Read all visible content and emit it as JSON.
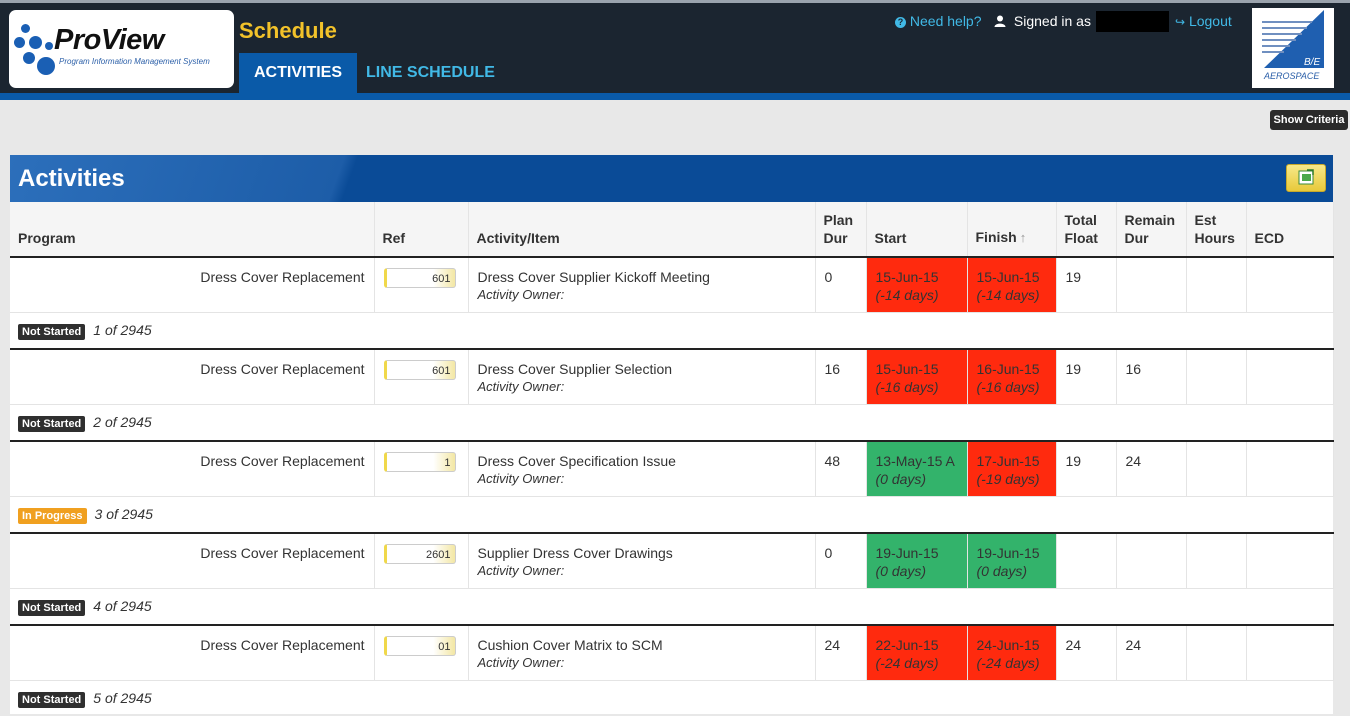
{
  "header": {
    "logo_name": "ProView",
    "logo_tagline": "Program Information Management System",
    "app_title": "Schedule",
    "tabs": [
      {
        "label": "ACTIVITIES",
        "active": true
      },
      {
        "label": "LINE SCHEDULE",
        "active": false
      }
    ],
    "help_label": "Need help?",
    "signed_in_label": "Signed in as",
    "logout_label": "Logout",
    "brand_logo_text": "AEROSPACE"
  },
  "toolbar": {
    "show_criteria_label": "Show Criteria"
  },
  "panel": {
    "title": "Activities",
    "columns": {
      "program": "Program",
      "ref": "Ref",
      "activity": "Activity/Item",
      "plan_dur_1": "Plan",
      "plan_dur_2": "Dur",
      "start": "Start",
      "finish": "Finish",
      "total_float_1": "Total",
      "total_float_2": "Float",
      "remain_dur_1": "Remain",
      "remain_dur_2": "Dur",
      "est_hours_1": "Est",
      "est_hours_2": "Hours",
      "ecd": "ECD"
    }
  },
  "colors": {
    "late": "#ff2a0e",
    "on_time": "#33b36b",
    "accent": "#0a5aa8",
    "title_yellow": "#f2c22a"
  },
  "rows": [
    {
      "program": "Dress Cover Replacement",
      "ref": "601",
      "activity": "Dress Cover Supplier Kickoff Meeting",
      "owner_label": "Activity Owner:",
      "plan_dur": "0",
      "start": "15-Jun-15",
      "start_sub": "(-14 days)",
      "start_status": "red",
      "finish": "15-Jun-15",
      "finish_sub": "(-14 days)",
      "finish_status": "red",
      "total_float": "19",
      "remain_dur": "",
      "est_hours": "",
      "ecd": "",
      "status": "Not Started",
      "position": "1 of 2945"
    },
    {
      "program": "Dress Cover Replacement",
      "ref": "601",
      "activity": "Dress Cover Supplier Selection",
      "owner_label": "Activity Owner:",
      "plan_dur": "16",
      "start": "15-Jun-15",
      "start_sub": "(-16 days)",
      "start_status": "red",
      "finish": "16-Jun-15",
      "finish_sub": "(-16 days)",
      "finish_status": "red",
      "total_float": "19",
      "remain_dur": "16",
      "est_hours": "",
      "ecd": "",
      "status": "Not Started",
      "position": "2 of 2945"
    },
    {
      "program": "Dress Cover Replacement",
      "ref": "1",
      "activity": "Dress Cover Specification Issue",
      "owner_label": "Activity Owner:",
      "plan_dur": "48",
      "start": "13-May-15 A",
      "start_sub": "(0 days)",
      "start_status": "green",
      "finish": "17-Jun-15",
      "finish_sub": "(-19 days)",
      "finish_status": "red",
      "total_float": "19",
      "remain_dur": "24",
      "est_hours": "",
      "ecd": "",
      "status": "In Progress",
      "position": "3 of 2945"
    },
    {
      "program": "Dress Cover Replacement",
      "ref": "2601",
      "activity": "Supplier Dress Cover Drawings",
      "owner_label": "Activity Owner:",
      "plan_dur": "0",
      "start": "19-Jun-15",
      "start_sub": "(0 days)",
      "start_status": "green",
      "finish": "19-Jun-15",
      "finish_sub": "(0 days)",
      "finish_status": "green",
      "total_float": "",
      "remain_dur": "",
      "est_hours": "",
      "ecd": "",
      "status": "Not Started",
      "position": "4 of 2945"
    },
    {
      "program": "Dress Cover Replacement",
      "ref": "01",
      "activity": "Cushion Cover Matrix to SCM",
      "owner_label": "Activity Owner:",
      "plan_dur": "24",
      "start": "22-Jun-15",
      "start_sub": "(-24 days)",
      "start_status": "red",
      "finish": "24-Jun-15",
      "finish_sub": "(-24 days)",
      "finish_status": "red",
      "total_float": "24",
      "remain_dur": "24",
      "est_hours": "",
      "ecd": "",
      "status": "Not Started",
      "position": "5 of 2945"
    }
  ]
}
